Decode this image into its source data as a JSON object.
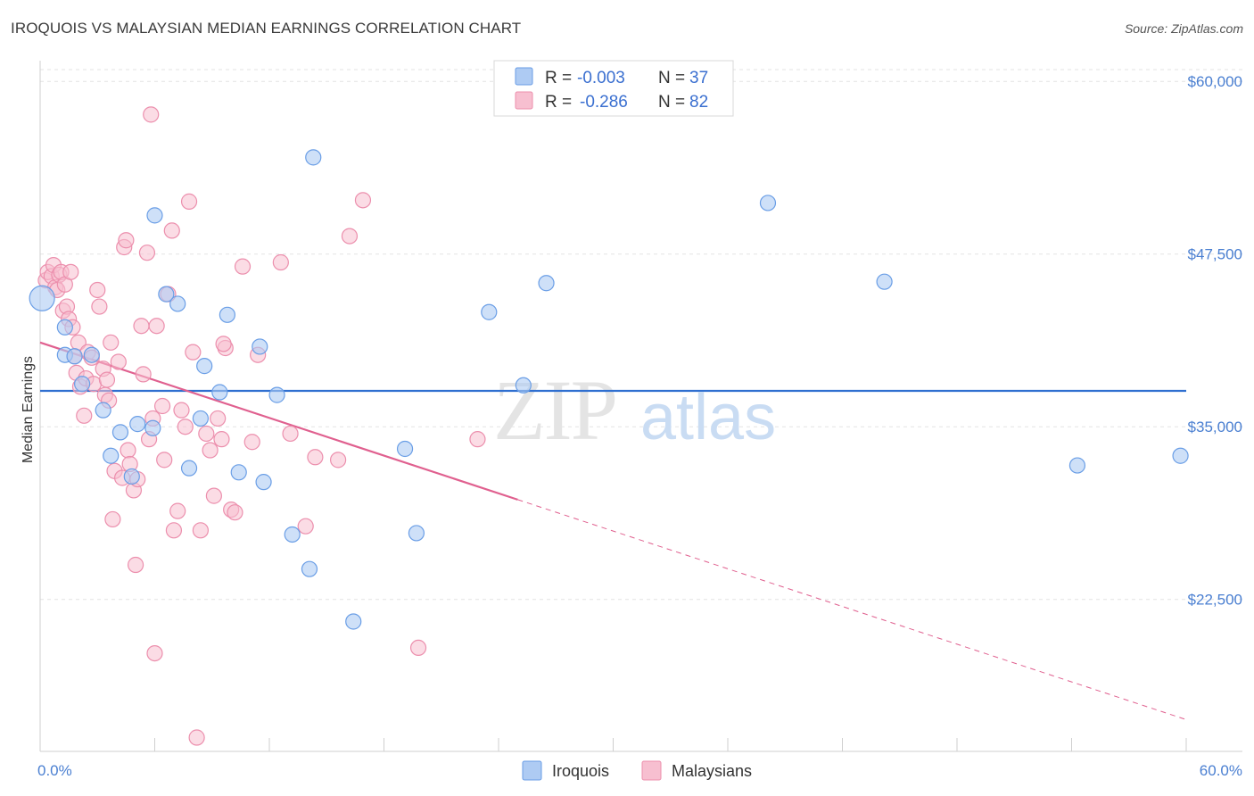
{
  "title": "IROQUOIS VS MALAYSIAN MEDIAN EARNINGS CORRELATION CHART",
  "source": "Source: ZipAtlas.com",
  "watermark": {
    "zip": "ZIP",
    "atlas": "atlas"
  },
  "colors": {
    "iroquois_fill": "#aecbf3",
    "iroquois_stroke": "#6a9ee6",
    "iroquois_line": "#2f6fd0",
    "malaysians_fill": "#f7bfd0",
    "malaysians_stroke": "#ec8fad",
    "malaysians_line": "#e0608f",
    "axis_label": "#4a7fd1",
    "grid": "#e3e3e3"
  },
  "legend": {
    "rows": [
      {
        "r_label": "R =",
        "r_value": "-0.003",
        "n_label": "N =",
        "n_value": "37"
      },
      {
        "r_label": "R =",
        "r_value": "-0.286",
        "n_label": "N =",
        "n_value": "82"
      }
    ]
  },
  "chart_data": {
    "type": "scatter",
    "title": "IROQUOIS VS MALAYSIAN MEDIAN EARNINGS CORRELATION CHART",
    "xlabel": "",
    "ylabel": "Median Earnings",
    "xlim": [
      0,
      60
    ],
    "ylim": [
      11500,
      61500
    ],
    "x_tick_labels": [
      "0.0%",
      "60.0%"
    ],
    "y_ticks": [
      22500,
      35000,
      47500,
      60000
    ],
    "y_tick_labels": [
      "$22,500",
      "$35,000",
      "$47,500",
      "$60,000"
    ],
    "series": [
      {
        "name": "Iroquois",
        "trend": {
          "x": [
            0,
            60
          ],
          "y": [
            37600,
            37600
          ],
          "solid_until": 60
        },
        "points": [
          [
            0.1,
            44300
          ],
          [
            1.3,
            40200
          ],
          [
            1.3,
            42200
          ],
          [
            1.8,
            40100
          ],
          [
            2.2,
            38100
          ],
          [
            2.7,
            40200
          ],
          [
            3.3,
            36200
          ],
          [
            3.7,
            32900
          ],
          [
            4.2,
            34600
          ],
          [
            4.8,
            31400
          ],
          [
            5.1,
            35200
          ],
          [
            5.9,
            34900
          ],
          [
            6.0,
            50300
          ],
          [
            6.6,
            44600
          ],
          [
            7.2,
            43900
          ],
          [
            7.8,
            32000
          ],
          [
            8.4,
            35600
          ],
          [
            8.6,
            39400
          ],
          [
            9.4,
            37500
          ],
          [
            9.8,
            43100
          ],
          [
            10.4,
            31700
          ],
          [
            11.5,
            40800
          ],
          [
            11.7,
            31000
          ],
          [
            12.4,
            37300
          ],
          [
            13.2,
            27200
          ],
          [
            14.1,
            24700
          ],
          [
            14.3,
            54500
          ],
          [
            16.4,
            20900
          ],
          [
            19.1,
            33400
          ],
          [
            19.7,
            27300
          ],
          [
            23.5,
            43300
          ],
          [
            25.3,
            38000
          ],
          [
            26.5,
            45400
          ],
          [
            38.1,
            51200
          ],
          [
            44.2,
            45500
          ],
          [
            54.3,
            32200
          ],
          [
            59.7,
            32900
          ]
        ]
      },
      {
        "name": "Malaysians",
        "trend": {
          "x": [
            0,
            60
          ],
          "y": [
            41100,
            13800
          ],
          "solid_until": 25
        }
      }
    ],
    "malaysians_points": [
      [
        0.3,
        45600
      ],
      [
        0.4,
        46200
      ],
      [
        0.6,
        45900
      ],
      [
        0.7,
        46700
      ],
      [
        0.8,
        45100
      ],
      [
        0.9,
        44900
      ],
      [
        1.0,
        46000
      ],
      [
        1.1,
        46200
      ],
      [
        1.2,
        43400
      ],
      [
        1.3,
        45300
      ],
      [
        1.4,
        43700
      ],
      [
        1.5,
        42800
      ],
      [
        1.6,
        46200
      ],
      [
        1.7,
        42200
      ],
      [
        1.8,
        40100
      ],
      [
        1.9,
        38900
      ],
      [
        2.0,
        41100
      ],
      [
        2.1,
        37900
      ],
      [
        2.3,
        35800
      ],
      [
        2.4,
        38500
      ],
      [
        2.5,
        40400
      ],
      [
        2.7,
        40000
      ],
      [
        2.8,
        38100
      ],
      [
        3.0,
        44900
      ],
      [
        3.1,
        43700
      ],
      [
        3.3,
        39200
      ],
      [
        3.4,
        37300
      ],
      [
        3.6,
        36900
      ],
      [
        3.7,
        41100
      ],
      [
        3.8,
        28300
      ],
      [
        3.9,
        31800
      ],
      [
        4.1,
        39700
      ],
      [
        4.3,
        31300
      ],
      [
        4.4,
        48000
      ],
      [
        4.5,
        48500
      ],
      [
        4.6,
        33300
      ],
      [
        4.7,
        32300
      ],
      [
        4.9,
        30400
      ],
      [
        5.0,
        25000
      ],
      [
        5.1,
        31200
      ],
      [
        5.3,
        42300
      ],
      [
        5.4,
        38800
      ],
      [
        5.6,
        47600
      ],
      [
        5.7,
        34100
      ],
      [
        5.8,
        57600
      ],
      [
        5.9,
        35600
      ],
      [
        6.0,
        18600
      ],
      [
        6.1,
        42300
      ],
      [
        6.4,
        36500
      ],
      [
        6.5,
        32600
      ],
      [
        6.7,
        44600
      ],
      [
        6.9,
        49200
      ],
      [
        7.0,
        27500
      ],
      [
        7.2,
        28900
      ],
      [
        7.4,
        36200
      ],
      [
        7.6,
        35000
      ],
      [
        7.8,
        51300
      ],
      [
        8.0,
        40400
      ],
      [
        8.2,
        12500
      ],
      [
        8.4,
        27500
      ],
      [
        8.7,
        34500
      ],
      [
        8.9,
        33300
      ],
      [
        9.1,
        30000
      ],
      [
        9.3,
        35600
      ],
      [
        9.5,
        34100
      ],
      [
        9.7,
        40700
      ],
      [
        10.0,
        29000
      ],
      [
        10.2,
        28800
      ],
      [
        10.6,
        46600
      ],
      [
        11.1,
        33900
      ],
      [
        11.4,
        40200
      ],
      [
        12.6,
        46900
      ],
      [
        13.1,
        34500
      ],
      [
        13.9,
        27800
      ],
      [
        14.4,
        32800
      ],
      [
        15.6,
        32600
      ],
      [
        16.2,
        48800
      ],
      [
        16.9,
        51400
      ],
      [
        19.8,
        19000
      ],
      [
        22.9,
        34100
      ],
      [
        9.6,
        41000
      ],
      [
        3.5,
        38400
      ]
    ]
  },
  "bottom_legend": [
    {
      "label": "Iroquois"
    },
    {
      "label": "Malaysians"
    }
  ]
}
